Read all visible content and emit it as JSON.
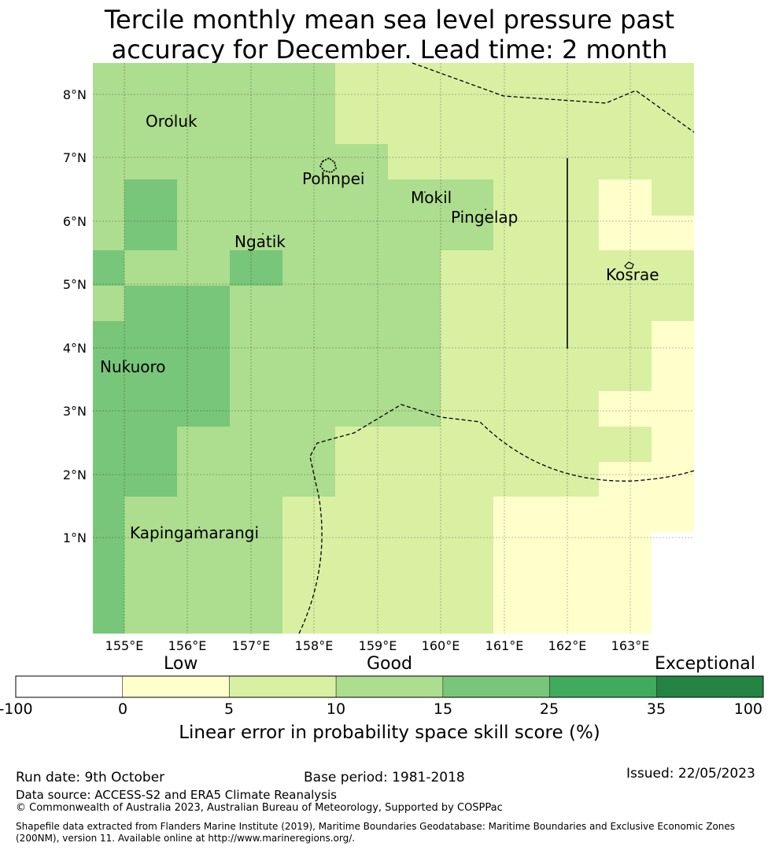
{
  "title_line1": "Tercile monthly mean sea level pressure past",
  "title_line2": "accuracy for December. Lead time: 2 month",
  "map": {
    "lat_labels": [
      "8°N",
      "7°N",
      "6°N",
      "5°N",
      "4°N",
      "3°N",
      "2°N",
      "1°N"
    ],
    "lon_labels": [
      "155°E",
      "156°E",
      "157°E",
      "158°E",
      "159°E",
      "160°E",
      "161°E",
      "162°E",
      "163°E"
    ],
    "places": [
      {
        "name": "Oroluk"
      },
      {
        "name": "Pohnpei"
      },
      {
        "name": "Mokil"
      },
      {
        "name": "Pingelap"
      },
      {
        "name": "Ngatik"
      },
      {
        "name": "Kosrae"
      },
      {
        "name": "Nukuoro"
      },
      {
        "name": "Kapingamarangi"
      }
    ]
  },
  "colorbar": {
    "categories": [
      "Low",
      "Good",
      "Exceptional"
    ],
    "colors": [
      "#ffffff",
      "#ffffcc",
      "#d9f0a3",
      "#addd8e",
      "#78c679",
      "#41ab5d",
      "#238443"
    ],
    "ticks": [
      "-100",
      "0",
      "5",
      "10",
      "15",
      "25",
      "35",
      "100"
    ],
    "label": "Linear error in probability space skill score (%)"
  },
  "footer": {
    "run_date": "Run date: 9th October",
    "base_period": "Base period: 1981-2018",
    "issued": "Issued: 22/05/2023",
    "data_source": "Data source: ACCESS-S2 and ERA5 Climate Reanalysis",
    "copyright": "© Commonwealth of Australia 2023, Australian Bureau of Meteorology, Supported by COSPPac",
    "shapefile": "Shapefile data extracted from Flanders Marine Institute (2019), Maritime Boundaries Geodatabase: Maritime Boundaries and Exclusive Economic Zones (200NM), version 11. Available online at http://www.marineregions.org/."
  }
}
